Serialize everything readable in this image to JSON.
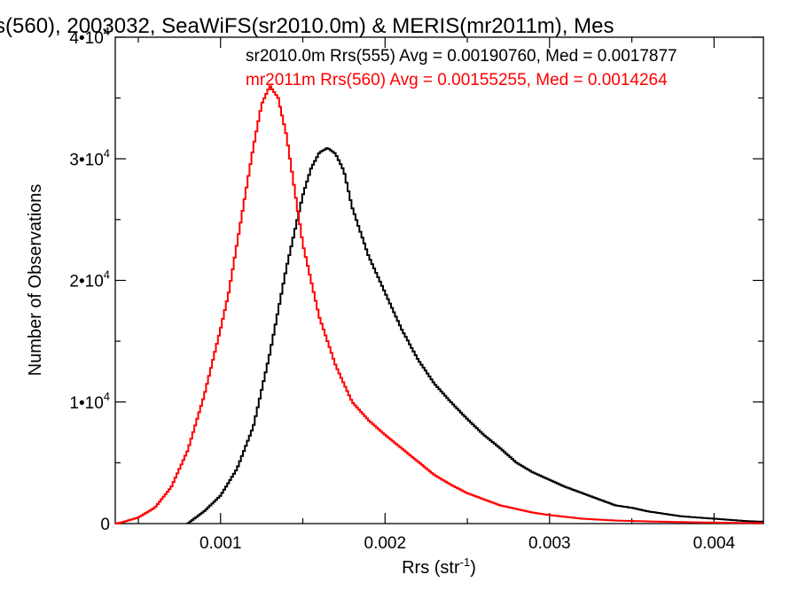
{
  "chart_data": {
    "type": "line",
    "title": "s(560), 2003032, SeaWiFS(sr2010.0m) & MERIS(mr2011m), Mes",
    "xlabel": "Rrs (str",
    "xlabel_sup": "-1",
    "xlabel_suffix": ")",
    "ylabel": "Number of Observations",
    "xlim": [
      0.00036,
      0.0043
    ],
    "ylim": [
      0,
      40000
    ],
    "xticks": [
      {
        "value": 0.001,
        "label": "0.001"
      },
      {
        "value": 0.002,
        "label": "0.002"
      },
      {
        "value": 0.003,
        "label": "0.003"
      },
      {
        "value": 0.004,
        "label": "0.004"
      }
    ],
    "yticks": [
      {
        "value": 0,
        "label": "0",
        "exp": ""
      },
      {
        "value": 10000,
        "label": "1•10",
        "exp": "4"
      },
      {
        "value": 20000,
        "label": "2•10",
        "exp": "4"
      },
      {
        "value": 30000,
        "label": "3•10",
        "exp": "4"
      },
      {
        "value": 40000,
        "label": "4•10",
        "exp": "4"
      }
    ],
    "grid": false,
    "legend": "top-right",
    "series": [
      {
        "name": "sr2010.0m Rrs(555) Avg = 0.00190760, Med = 0.0017877",
        "color": "#000000",
        "x": [
          0.0008,
          0.0009,
          0.001,
          0.0011,
          0.0012,
          0.0013,
          0.0014,
          0.0015,
          0.00155,
          0.0016,
          0.00165,
          0.0017,
          0.00175,
          0.0018,
          0.0019,
          0.002,
          0.0021,
          0.0022,
          0.0023,
          0.0024,
          0.0025,
          0.0026,
          0.0027,
          0.0028,
          0.0029,
          0.003,
          0.0031,
          0.0032,
          0.0033,
          0.0034,
          0.0035,
          0.0036,
          0.0037,
          0.0038,
          0.0039,
          0.004,
          0.0041,
          0.0042,
          0.0043
        ],
        "y": [
          0,
          1000,
          2300,
          4500,
          8000,
          14000,
          21000,
          27000,
          29200,
          30500,
          30900,
          30400,
          29000,
          26000,
          22000,
          19000,
          16000,
          13500,
          11500,
          10000,
          8600,
          7300,
          6200,
          5000,
          4200,
          3600,
          3000,
          2500,
          2000,
          1500,
          1300,
          1000,
          800,
          600,
          500,
          400,
          300,
          200,
          150
        ]
      },
      {
        "name": "mr2011m Rrs(560) Avg = 0.00155255, Med = 0.0014264",
        "color": "#ff0000",
        "x": [
          0.00036,
          0.0004,
          0.0005,
          0.0006,
          0.0007,
          0.0008,
          0.0009,
          0.001,
          0.00105,
          0.0011,
          0.00115,
          0.0012,
          0.00125,
          0.0013,
          0.00135,
          0.0014,
          0.00145,
          0.0015,
          0.0016,
          0.0017,
          0.0018,
          0.0019,
          0.002,
          0.0021,
          0.0022,
          0.0023,
          0.0024,
          0.0025,
          0.0026,
          0.0027,
          0.0028,
          0.0029,
          0.003,
          0.0032,
          0.0034,
          0.0036,
          0.0038,
          0.004,
          0.0043
        ],
        "y": [
          0,
          100,
          500,
          1300,
          3000,
          6000,
          10500,
          16000,
          19000,
          23000,
          27000,
          31000,
          34500,
          36000,
          35000,
          32000,
          27500,
          23000,
          17000,
          13000,
          10000,
          8500,
          7300,
          6200,
          5100,
          4000,
          3200,
          2500,
          2000,
          1500,
          1200,
          900,
          700,
          400,
          250,
          180,
          120,
          80,
          40
        ]
      }
    ]
  }
}
